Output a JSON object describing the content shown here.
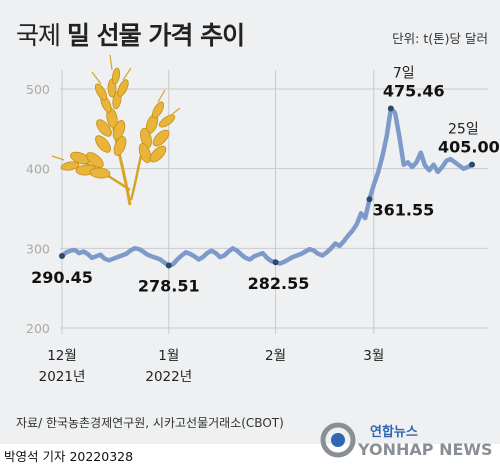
{
  "header": {
    "title_light": "국제",
    "title_bold": "밀 선물 가격 추이",
    "unit": "단위: t(톤)당 달러"
  },
  "footer": {
    "source": "자료/ 한국농촌경제연구원, 시카고선물거래소(CBOT)",
    "byline": "박영석 기자 20220328",
    "logo_top": "연합뉴스",
    "logo_bottom": "YONHAP NEWS"
  },
  "colors": {
    "line": "#7e9acb",
    "point": "#2e4a6b",
    "background": "#eef0f2",
    "grid": "#c8cbcf"
  },
  "icons": {
    "illustration": "wheat-icon",
    "logo": "yonhap-globe-icon"
  },
  "chart_data": {
    "type": "line",
    "ylim": [
      200,
      500
    ],
    "yticks": [
      200,
      300,
      400,
      500
    ],
    "grid": true,
    "x_ticks": [
      {
        "idx": 0,
        "label": "12월",
        "sub": "2021년"
      },
      {
        "idx": 25,
        "label": "1월",
        "sub": "2022년"
      },
      {
        "idx": 50,
        "label": "2월",
        "sub": ""
      },
      {
        "idx": 73,
        "label": "3월",
        "sub": ""
      }
    ],
    "values": [
      290.45,
      295,
      297,
      298,
      294,
      296,
      293,
      288,
      290,
      292,
      287,
      285,
      287,
      289,
      291,
      293,
      297,
      300,
      299,
      296,
      292,
      290,
      288,
      286,
      282,
      278.51,
      280,
      286,
      291,
      295,
      293,
      290,
      286,
      289,
      294,
      297,
      294,
      289,
      291,
      296,
      300,
      297,
      292,
      288,
      286,
      290,
      292,
      294,
      288,
      284,
      282.55,
      281,
      283,
      286,
      289,
      291,
      293,
      296,
      299,
      297,
      293,
      291,
      295,
      300,
      306,
      303,
      309,
      316,
      322,
      330,
      344,
      338,
      361.55,
      380,
      395,
      415,
      440,
      475.46,
      470,
      440,
      405,
      408,
      402,
      408,
      420,
      404,
      398,
      405,
      396,
      402,
      410,
      412,
      408,
      404,
      400,
      402,
      405.0
    ],
    "annotations": [
      {
        "idx": 0,
        "text": "290.45",
        "dx": 0,
        "dy": 27,
        "anchor": "middle",
        "marker": true
      },
      {
        "idx": 25,
        "text": "278.51",
        "dx": 0,
        "dy": 26,
        "anchor": "middle",
        "marker": true
      },
      {
        "idx": 50,
        "text": "282.55",
        "dx": 3,
        "dy": 27,
        "anchor": "middle",
        "marker": true
      },
      {
        "idx": 72,
        "text": "361.55",
        "dx": 3,
        "dy": 16,
        "anchor": "start",
        "marker": true
      },
      {
        "idx": 77,
        "text": "475.46",
        "dx": -8,
        "dy": -12,
        "anchor": "start",
        "marker": true,
        "date": "7일",
        "ddy": -31
      },
      {
        "idx": 96,
        "text": "405.00",
        "dx": -34,
        "dy": -12,
        "anchor": "start",
        "marker": true,
        "date": "25일",
        "ddy": -31
      }
    ]
  }
}
